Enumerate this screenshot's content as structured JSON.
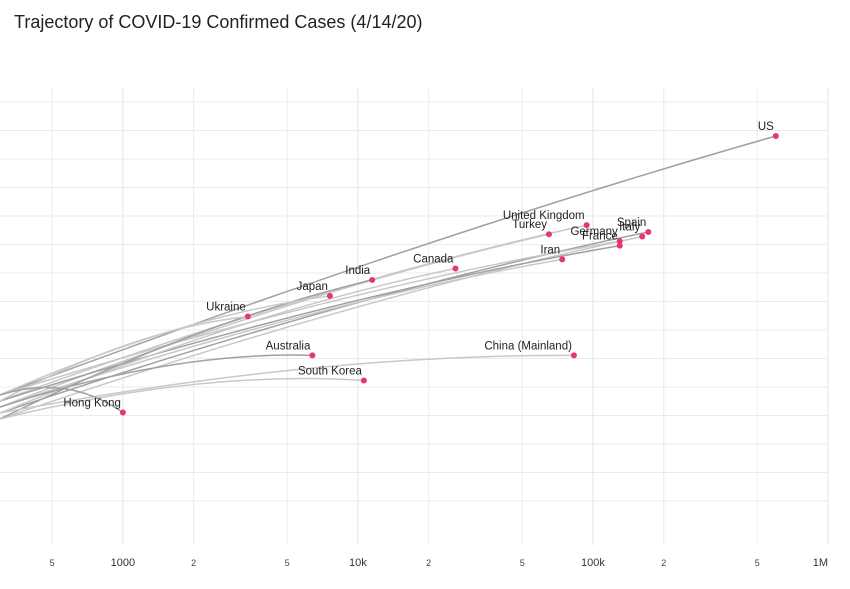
{
  "colors": {
    "dot": "#e8356a",
    "trail": "#c8c8c8",
    "grid": "#ebebeb"
  },
  "chart_data": {
    "type": "scatter",
    "title": "Trajectory of COVID-19 Confirmed Cases (4/14/20)",
    "x_scale": "log",
    "x_range": [
      300,
      1000000
    ],
    "xlabel": "",
    "ylabel": "",
    "grid": true,
    "x_ticks": [
      {
        "value": 500,
        "label": "5",
        "minor": true
      },
      {
        "value": 1000,
        "label": "1000",
        "minor": false
      },
      {
        "value": 2000,
        "label": "2",
        "minor": true
      },
      {
        "value": 5000,
        "label": "5",
        "minor": true
      },
      {
        "value": 10000,
        "label": "10k",
        "minor": false
      },
      {
        "value": 20000,
        "label": "2",
        "minor": true
      },
      {
        "value": 50000,
        "label": "5",
        "minor": true
      },
      {
        "value": 100000,
        "label": "100k",
        "minor": false
      },
      {
        "value": 200000,
        "label": "2",
        "minor": true
      },
      {
        "value": 500000,
        "label": "5",
        "minor": true
      },
      {
        "value": 1000000,
        "label": "1M",
        "minor": false
      }
    ],
    "series": [
      {
        "name": "US",
        "x": 600000,
        "y_rank": 0.105,
        "label_pos": "above-left"
      },
      {
        "name": "United Kingdom",
        "x": 94000,
        "y_rank": 0.3,
        "label_pos": "above-left"
      },
      {
        "name": "Turkey",
        "x": 65000,
        "y_rank": 0.32,
        "label_pos": "above-left"
      },
      {
        "name": "Spain",
        "x": 172000,
        "y_rank": 0.315,
        "label_pos": "above-left"
      },
      {
        "name": "Italy",
        "x": 162000,
        "y_rank": 0.325,
        "label_pos": "above-left"
      },
      {
        "name": "Germany",
        "x": 130000,
        "y_rank": 0.335,
        "label_pos": "above-left"
      },
      {
        "name": "France",
        "x": 130000,
        "y_rank": 0.345,
        "label_pos": "above-left"
      },
      {
        "name": "Iran",
        "x": 74000,
        "y_rank": 0.375,
        "label_pos": "above-left"
      },
      {
        "name": "Canada",
        "x": 26000,
        "y_rank": 0.395,
        "label_pos": "above-left"
      },
      {
        "name": "India",
        "x": 11500,
        "y_rank": 0.42,
        "label_pos": "above-left"
      },
      {
        "name": "Japan",
        "x": 7600,
        "y_rank": 0.455,
        "label_pos": "above-left"
      },
      {
        "name": "Ukraine",
        "x": 3400,
        "y_rank": 0.5,
        "label_pos": "above-left"
      },
      {
        "name": "Australia",
        "x": 6400,
        "y_rank": 0.585,
        "label_pos": "above-left"
      },
      {
        "name": "China (Mainland)",
        "x": 83000,
        "y_rank": 0.585,
        "label_pos": "above-left"
      },
      {
        "name": "South Korea",
        "x": 10600,
        "y_rank": 0.64,
        "label_pos": "above-left"
      },
      {
        "name": "Hong Kong",
        "x": 1000,
        "y_rank": 0.71,
        "label_pos": "above-left"
      }
    ]
  }
}
